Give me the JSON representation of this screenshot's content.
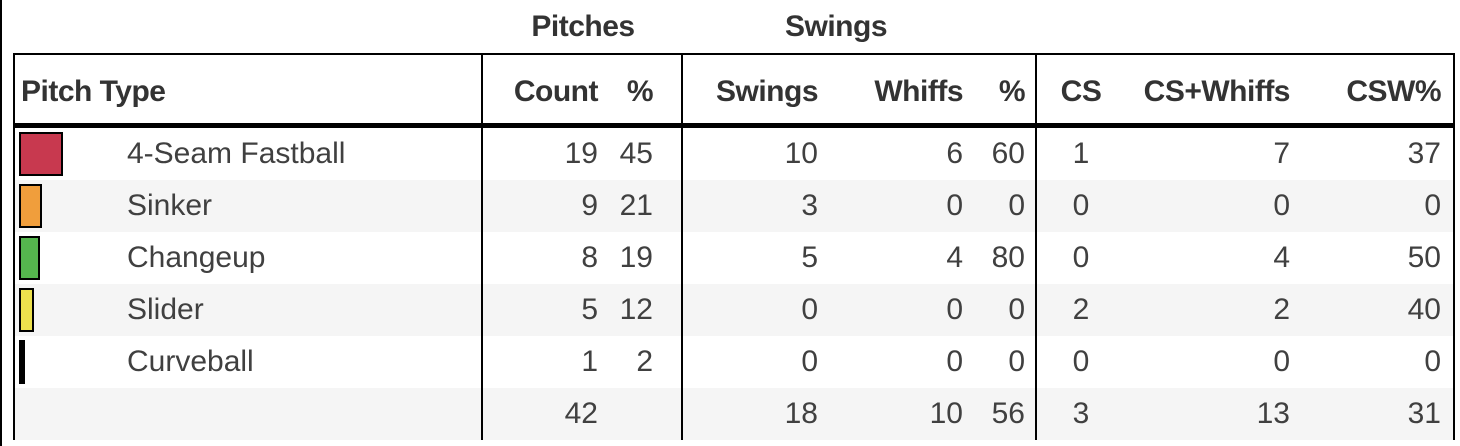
{
  "table": {
    "group_headers": {
      "pitches": "Pitches",
      "swings": "Swings"
    },
    "columns": {
      "pitch_type": "Pitch Type",
      "count": "Count",
      "count_pct": "%",
      "swings": "Swings",
      "whiffs": "Whiffs",
      "swings_pct": "%",
      "cs": "CS",
      "cs_whiffs": "CS+Whiffs",
      "csw_pct": "CSW%"
    },
    "rows": [
      {
        "pitch_type": "4-Seam Fastball",
        "color": "#C8394F",
        "count": 19,
        "count_pct": 45,
        "swings": 10,
        "whiffs": 6,
        "swings_pct": 60,
        "cs": 1,
        "cs_whiffs": 7,
        "csw_pct": 37
      },
      {
        "pitch_type": "Sinker",
        "color": "#F09E3C",
        "count": 9,
        "count_pct": 21,
        "swings": 3,
        "whiffs": 0,
        "swings_pct": 0,
        "cs": 0,
        "cs_whiffs": 0,
        "csw_pct": 0
      },
      {
        "pitch_type": "Changeup",
        "color": "#55B64E",
        "count": 8,
        "count_pct": 19,
        "swings": 5,
        "whiffs": 4,
        "swings_pct": 80,
        "cs": 0,
        "cs_whiffs": 4,
        "csw_pct": 50
      },
      {
        "pitch_type": "Slider",
        "color": "#EDE14D",
        "count": 5,
        "count_pct": 12,
        "swings": 0,
        "whiffs": 0,
        "swings_pct": 0,
        "cs": 2,
        "cs_whiffs": 2,
        "csw_pct": 40
      },
      {
        "pitch_type": "Curveball",
        "color": "#000000",
        "count": 1,
        "count_pct": 2,
        "swings": 0,
        "whiffs": 0,
        "swings_pct": 0,
        "cs": 0,
        "cs_whiffs": 0,
        "csw_pct": 0
      }
    ],
    "totals": {
      "count": 42,
      "count_pct": "",
      "swings": 18,
      "whiffs": 10,
      "swings_pct": 56,
      "cs": 3,
      "cs_whiffs": 13,
      "csw_pct": 31
    }
  },
  "colors": {
    "border": "#000000",
    "stripe": "#f5f5f5",
    "header_text": "#333333",
    "data_text": "#404040"
  }
}
